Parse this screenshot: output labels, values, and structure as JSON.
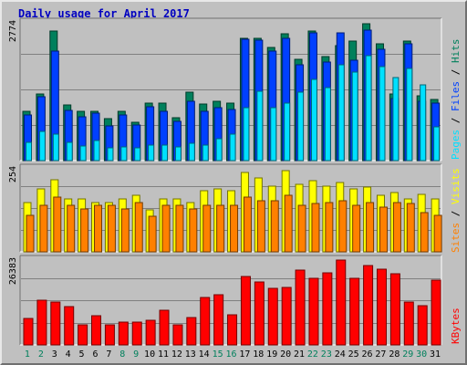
{
  "title": "Daily usage for April 2017",
  "colors": {
    "background": "#c0c0c0",
    "title": "#0000c0",
    "hits": "#00805c",
    "files": "#0040ff",
    "pages": "#00e0ff",
    "visits": "#ffff00",
    "sites": "#ff8000",
    "kbytes": "#ff0000",
    "weekend_label": "#00805c",
    "weekday_label": "#000000"
  },
  "chart_data": [
    {
      "type": "bar",
      "name": "hits-files-pages",
      "categories": [
        "1",
        "2",
        "3",
        "4",
        "5",
        "6",
        "7",
        "8",
        "9",
        "10",
        "11",
        "12",
        "13",
        "14",
        "15",
        "16",
        "17",
        "18",
        "19",
        "20",
        "21",
        "22",
        "23",
        "24",
        "25",
        "26",
        "27",
        "28",
        "29",
        "30",
        "31"
      ],
      "weekend_days": [
        "1",
        "2",
        "8",
        "9",
        "15",
        "16",
        "22",
        "23",
        "29",
        "30"
      ],
      "ymax_label": "2774",
      "ylim": [
        0,
        2774
      ],
      "vertical_label": {
        "pages": "Pages",
        "files": "Files",
        "hits": "Hits",
        "sep": " / "
      },
      "series": [
        {
          "key": "hits",
          "values": [
            1000,
            1350,
            2620,
            1130,
            1000,
            1000,
            850,
            1000,
            770,
            1160,
            1160,
            860,
            1380,
            1150,
            1200,
            1160,
            2470,
            2470,
            2290,
            2570,
            2060,
            2630,
            2100,
            2330,
            2420,
            2780,
            2370,
            1350,
            2420,
            1320,
            1240
          ]
        },
        {
          "key": "files",
          "values": [
            930,
            1300,
            2220,
            1010,
            890,
            970,
            710,
            920,
            720,
            1100,
            1000,
            790,
            1210,
            1000,
            1080,
            1030,
            2460,
            2440,
            2220,
            2480,
            1950,
            2590,
            2000,
            2580,
            2030,
            2650,
            2250,
            1260,
            2370,
            1200,
            1170
          ]
        },
        {
          "key": "pages",
          "values": [
            370,
            590,
            530,
            370,
            300,
            410,
            250,
            280,
            250,
            320,
            320,
            280,
            360,
            310,
            440,
            540,
            1070,
            1400,
            1070,
            1160,
            1390,
            1650,
            1480,
            1950,
            1800,
            2120,
            1910,
            1690,
            1860,
            1530,
            680
          ]
        }
      ]
    },
    {
      "type": "bar",
      "name": "visits-sites",
      "categories": [
        "1",
        "2",
        "3",
        "4",
        "5",
        "6",
        "7",
        "8",
        "9",
        "10",
        "11",
        "12",
        "13",
        "14",
        "15",
        "16",
        "17",
        "18",
        "19",
        "20",
        "21",
        "22",
        "23",
        "24",
        "25",
        "26",
        "27",
        "28",
        "29",
        "30",
        "31"
      ],
      "ymax_label": "254",
      "ylim": [
        0,
        254
      ],
      "vertical_label": {
        "sites": "Sites",
        "visits": "Visits",
        "sep": " / "
      },
      "series": [
        {
          "key": "visits",
          "values": [
            150,
            190,
            218,
            160,
            160,
            150,
            150,
            160,
            170,
            128,
            160,
            160,
            150,
            185,
            190,
            185,
            240,
            225,
            200,
            245,
            205,
            215,
            200,
            210,
            190,
            195,
            170,
            180,
            160,
            175,
            160
          ]
        },
        {
          "key": "sites",
          "values": [
            110,
            140,
            165,
            140,
            130,
            140,
            140,
            130,
            150,
            108,
            140,
            140,
            130,
            140,
            140,
            140,
            165,
            155,
            155,
            170,
            140,
            145,
            150,
            155,
            140,
            150,
            135,
            150,
            145,
            120,
            110
          ]
        }
      ]
    },
    {
      "type": "bar",
      "name": "kbytes",
      "categories": [
        "1",
        "2",
        "3",
        "4",
        "5",
        "6",
        "7",
        "8",
        "9",
        "10",
        "11",
        "12",
        "13",
        "14",
        "15",
        "16",
        "17",
        "18",
        "19",
        "20",
        "21",
        "22",
        "23",
        "24",
        "25",
        "26",
        "27",
        "28",
        "29",
        "30",
        "31"
      ],
      "ymax_label": "26383",
      "ylim": [
        0,
        26383
      ],
      "vertical_label": {
        "kbytes": "KBytes"
      },
      "series": [
        {
          "key": "kbytes",
          "values": [
            8200,
            13800,
            13300,
            11700,
            6300,
            9000,
            6300,
            7000,
            7000,
            7600,
            10800,
            6300,
            8500,
            14700,
            15500,
            9300,
            21000,
            19300,
            17500,
            17800,
            23100,
            20500,
            22300,
            26000,
            20500,
            24500,
            23300,
            22000,
            13300,
            12000,
            19800
          ]
        }
      ]
    }
  ]
}
